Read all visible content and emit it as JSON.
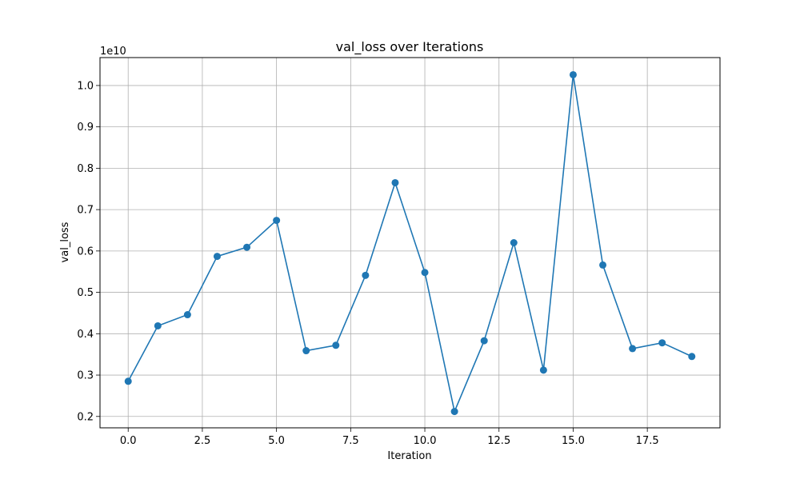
{
  "chart_data": {
    "type": "line",
    "title": "val_loss over Iterations",
    "xlabel": "Iteration",
    "ylabel": "val_loss",
    "y_offset_label": "1e10",
    "xlim": [
      -0.95,
      19.95
    ],
    "ylim": [
      0.1725,
      1.0675
    ],
    "x_ticks": [
      0.0,
      2.5,
      5.0,
      7.5,
      10.0,
      12.5,
      15.0,
      17.5
    ],
    "x_tick_labels": [
      "0.0",
      "2.5",
      "5.0",
      "7.5",
      "10.0",
      "12.5",
      "15.0",
      "17.5"
    ],
    "y_ticks": [
      0.2,
      0.3,
      0.4,
      0.5,
      0.6,
      0.7,
      0.8,
      0.9,
      1.0
    ],
    "y_tick_labels": [
      "0.2",
      "0.3",
      "0.4",
      "0.5",
      "0.6",
      "0.7",
      "0.8",
      "0.9",
      "1.0"
    ],
    "grid": true,
    "color": "#1f77b4",
    "series": [
      {
        "x": [
          0,
          1,
          2,
          3,
          4,
          5,
          6,
          7,
          8,
          9,
          10,
          11,
          12,
          13,
          14,
          15,
          16,
          17,
          18,
          19
        ],
        "values": [
          0.285,
          0.419,
          0.446,
          0.587,
          0.609,
          0.674,
          0.359,
          0.372,
          0.541,
          0.765,
          0.548,
          0.212,
          0.383,
          0.62,
          0.312,
          1.026,
          0.566,
          0.364,
          0.378,
          0.345
        ]
      }
    ]
  }
}
